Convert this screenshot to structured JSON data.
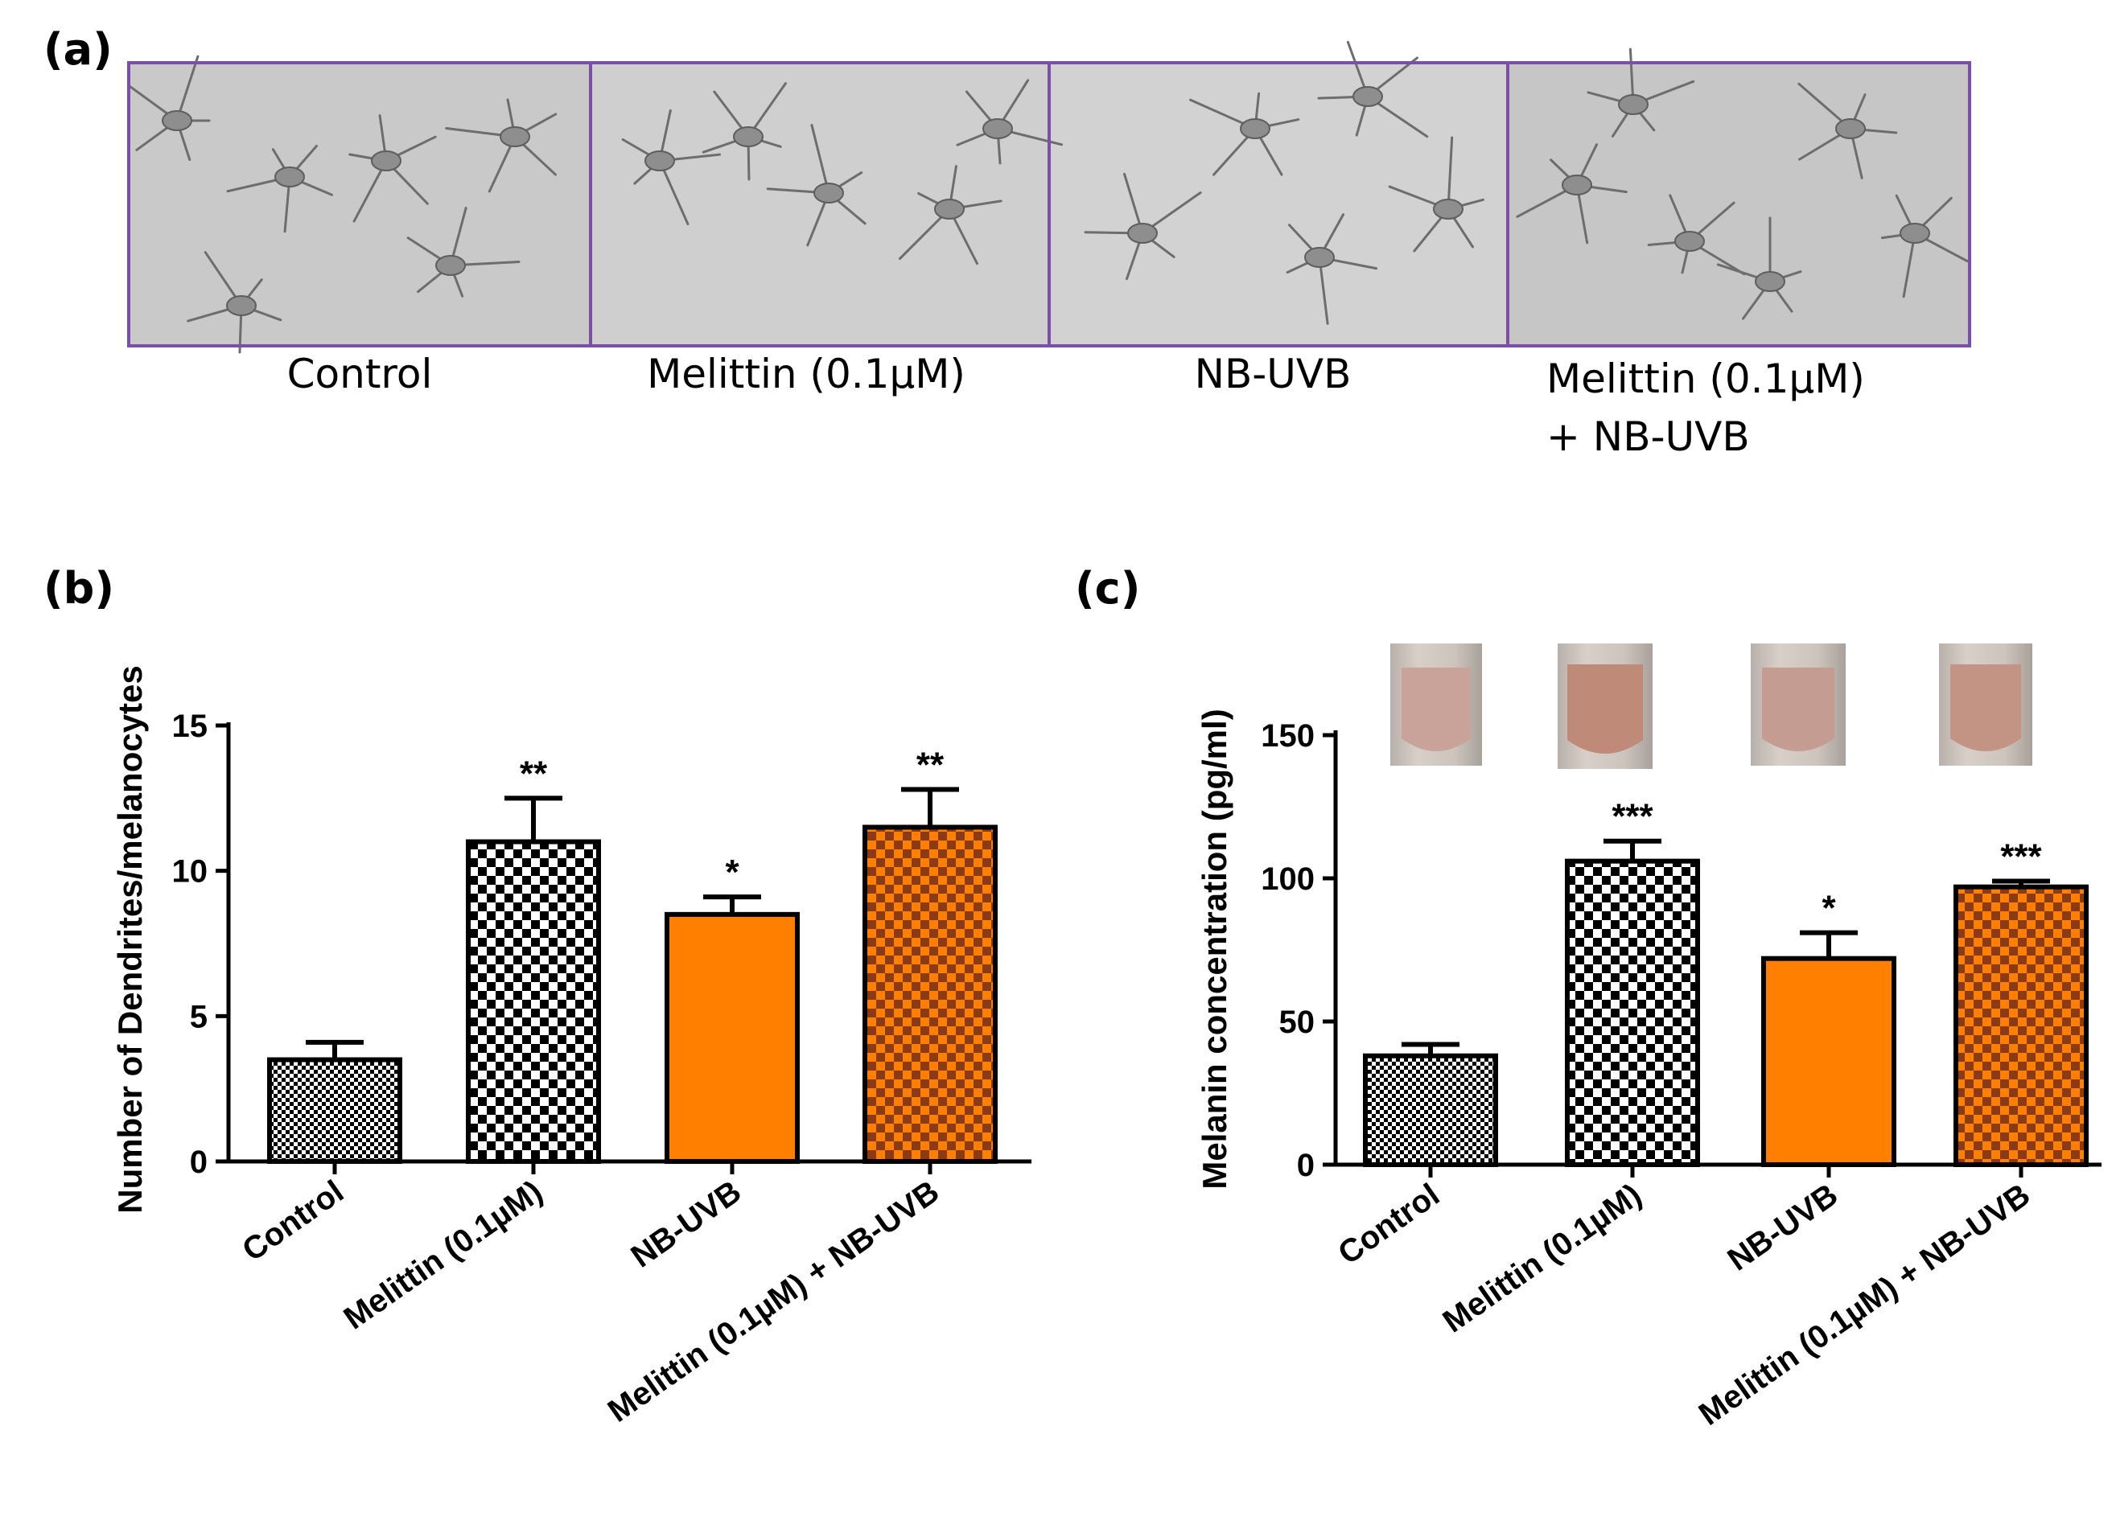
{
  "panel_labels": [
    "(a)",
    "(b)",
    "(c)"
  ],
  "microscopy": {
    "captions": [
      [
        "Control"
      ],
      [
        "Melittin (0.1µM)"
      ],
      [
        "NB-UVB"
      ],
      [
        "Melittin (0.1µM)",
        "+ NB-UVB"
      ]
    ],
    "border_color": "#7b4fa3"
  },
  "colors": {
    "orange": "#ff7f00",
    "brown_check": "#b34a1e",
    "black": "#000000",
    "tube_pink": "#c99a92"
  },
  "chart_data": [
    {
      "type": "bar",
      "panel": "(b)",
      "title": "",
      "xlabel": "",
      "ylabel": "Number of Dendrites/melanocytes",
      "ylim": [
        0,
        15
      ],
      "yticks": [
        0,
        5,
        10,
        15
      ],
      "categories": [
        "Control",
        "Melittin (0.1µM)",
        "NB-UVB",
        "Melittin (0.1µM) + NB-UVB"
      ],
      "values": [
        3.5,
        11.0,
        8.5,
        11.5
      ],
      "errors": [
        0.6,
        1.5,
        0.6,
        1.3
      ],
      "significance": [
        "",
        "**",
        "*",
        "**"
      ],
      "fills": [
        "fine-check",
        "bw-check",
        "orange",
        "brown-check"
      ]
    },
    {
      "type": "bar",
      "panel": "(c)",
      "title": "",
      "xlabel": "",
      "ylabel": "Melanin concentration (pg/ml)",
      "ylim": [
        0,
        150
      ],
      "yticks": [
        0,
        50,
        100,
        150
      ],
      "categories": [
        "Control",
        "Melittin (0.1µM)",
        "NB-UVB",
        "Melittin (0.1µM) + NB-UVB"
      ],
      "values": [
        38,
        106,
        72,
        97
      ],
      "errors": [
        4,
        7,
        9,
        2
      ],
      "significance": [
        "",
        "***",
        "*",
        "***"
      ],
      "fills": [
        "fine-check",
        "bw-check",
        "orange",
        "brown-check"
      ]
    }
  ]
}
